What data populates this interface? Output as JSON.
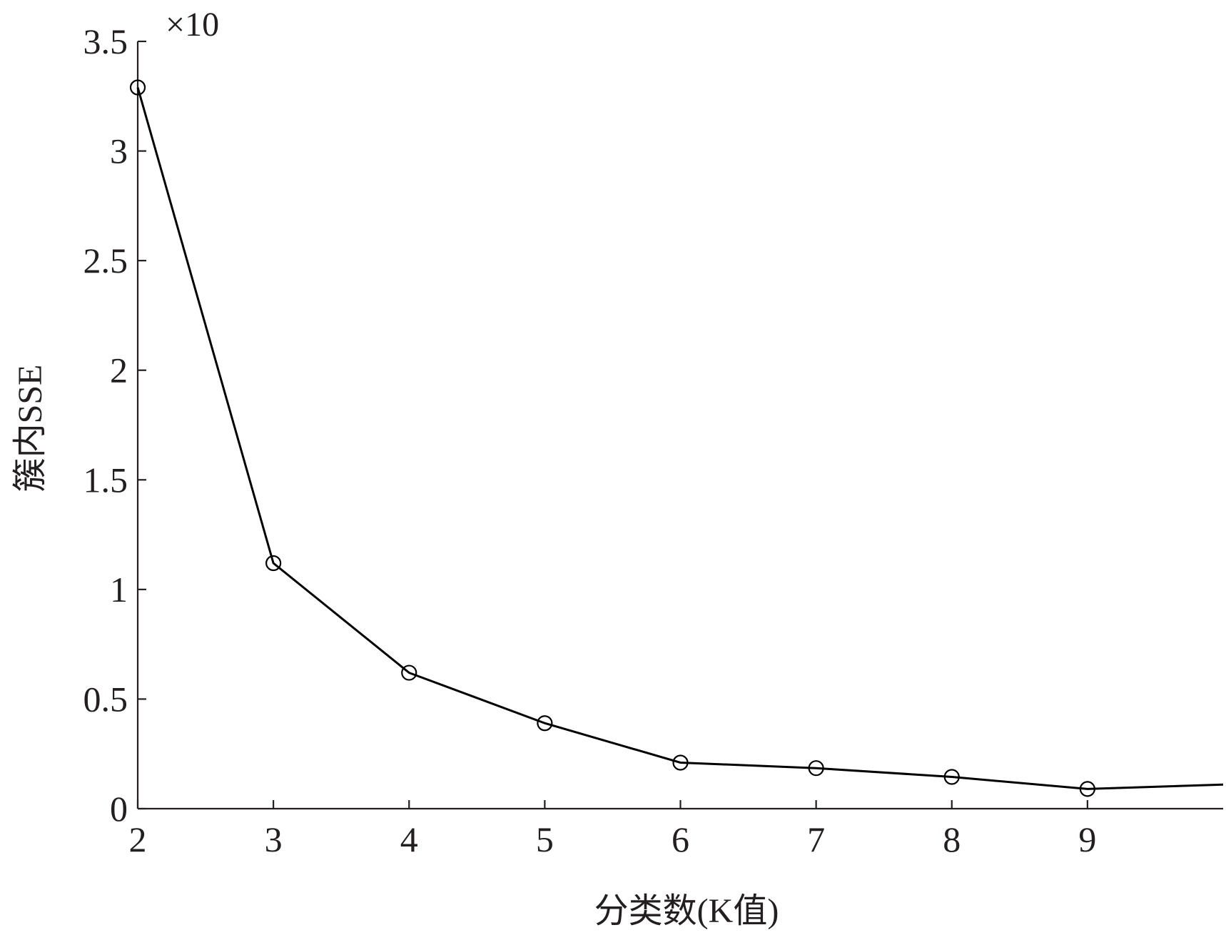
{
  "chart_data": {
    "type": "line",
    "xlabel": "分类数(K值)",
    "ylabel": "簇内SSE",
    "y_multiplier_label": "×10",
    "xlim": [
      2,
      10
    ],
    "ylim": [
      0,
      3.5
    ],
    "x_ticks": [
      2,
      3,
      4,
      5,
      6,
      7,
      8,
      9
    ],
    "x_tick_labels": [
      "2",
      "3",
      "4",
      "5",
      "6",
      "7",
      "8",
      "9"
    ],
    "y_ticks": [
      0,
      0.5,
      1,
      1.5,
      2,
      2.5,
      3,
      3.5
    ],
    "y_tick_labels": [
      "0",
      "0.5",
      "1",
      "1.5",
      "2",
      "2.5",
      "3",
      "3.5"
    ],
    "grid": false,
    "series": [
      {
        "x": [
          2,
          3,
          4,
          5,
          6,
          7,
          8,
          9,
          10
        ],
        "values": [
          3.29,
          1.12,
          0.62,
          0.39,
          0.21,
          0.185,
          0.145,
          0.09,
          0.11
        ],
        "marker_points": [
          true,
          true,
          true,
          true,
          true,
          true,
          true,
          true,
          false
        ],
        "color": "#000000"
      }
    ]
  }
}
